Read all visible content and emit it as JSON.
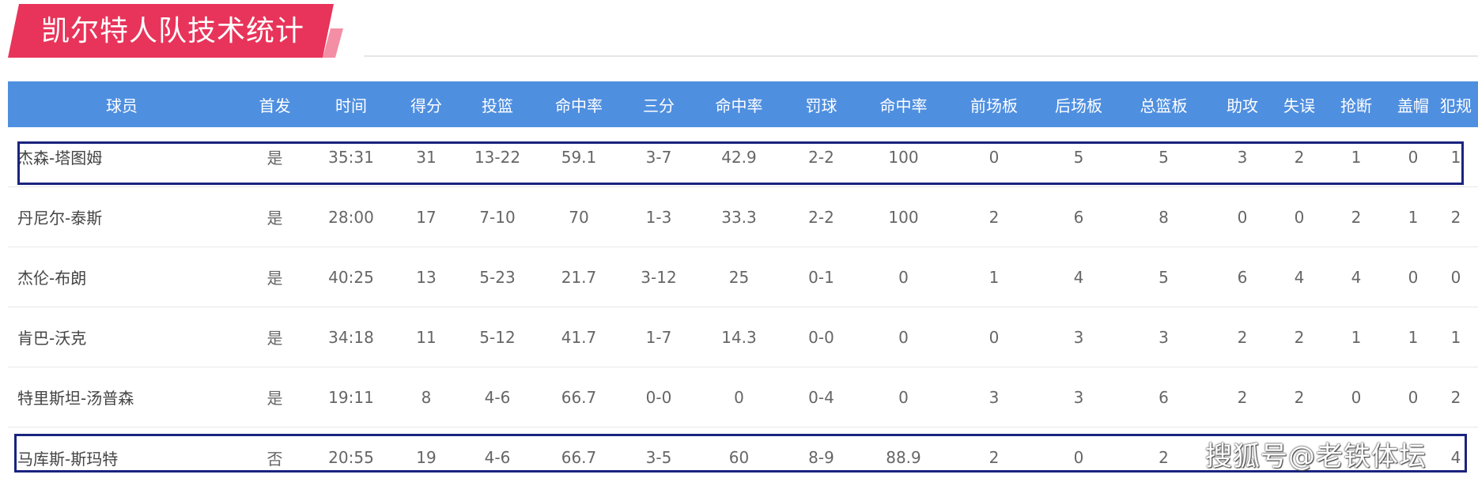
{
  "title": "凯尔特人队技术统计",
  "columns": [
    "球员",
    "首发",
    "时间",
    "得分",
    "投篮",
    "命中率",
    "三分",
    "命中率",
    "罚球",
    "命中率",
    "前场板",
    "后场板",
    "总篮板",
    "助攻",
    "失误",
    "抢断",
    "盖帽",
    "犯规"
  ],
  "rows": [
    [
      "杰森-塔图姆",
      "是",
      "35:31",
      "31",
      "13-22",
      "59.1",
      "3-7",
      "42.9",
      "2-2",
      "100",
      "0",
      "5",
      "5",
      "3",
      "2",
      "1",
      "0",
      "1"
    ],
    [
      "丹尼尔-泰斯",
      "是",
      "28:00",
      "17",
      "7-10",
      "70",
      "1-3",
      "33.3",
      "2-2",
      "100",
      "2",
      "6",
      "8",
      "0",
      "0",
      "2",
      "1",
      "2"
    ],
    [
      "杰伦-布朗",
      "是",
      "40:25",
      "13",
      "5-23",
      "21.7",
      "3-12",
      "25",
      "0-1",
      "0",
      "1",
      "4",
      "5",
      "6",
      "4",
      "4",
      "0",
      "0"
    ],
    [
      "肯巴-沃克",
      "是",
      "34:18",
      "11",
      "5-12",
      "41.7",
      "1-7",
      "14.3",
      "0-0",
      "0",
      "0",
      "3",
      "3",
      "2",
      "2",
      "1",
      "1",
      "1"
    ],
    [
      "特里斯坦-汤普森",
      "是",
      "19:11",
      "8",
      "4-6",
      "66.7",
      "0-0",
      "0",
      "0-4",
      "0",
      "3",
      "3",
      "6",
      "2",
      "2",
      "0",
      "0",
      "2"
    ],
    [
      "马库斯-斯玛特",
      "否",
      "20:55",
      "19",
      "4-6",
      "66.7",
      "3-5",
      "60",
      "8-9",
      "88.9",
      "2",
      "0",
      "2",
      "",
      "",
      "",
      "",
      "4"
    ]
  ],
  "watermark": "搜狐号@老铁体坛",
  "colors": {
    "banner": "#e8345a",
    "header": "#4f8fe0",
    "highlight": "#1a237e"
  }
}
